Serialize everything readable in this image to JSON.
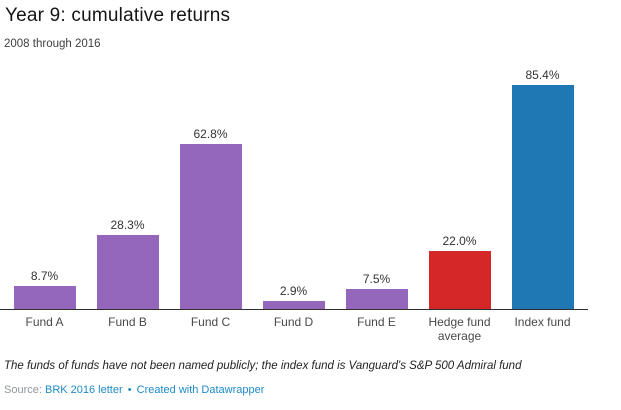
{
  "header": {
    "title": "Year 9: cumulative returns",
    "subtitle": "2008 through 2016"
  },
  "chart_data": {
    "type": "bar",
    "title": "Year 9: cumulative returns",
    "subtitle": "2008 through 2016",
    "categories": [
      "Fund A",
      "Fund B",
      "Fund C",
      "Fund D",
      "Fund E",
      "Hedge fund average",
      "Index fund"
    ],
    "values": [
      8.7,
      28.3,
      62.8,
      2.9,
      7.5,
      22.0,
      85.4
    ],
    "value_labels": [
      "8.7%",
      "28.3%",
      "62.8%",
      "2.9%",
      "7.5%",
      "22.0%",
      "85.4%"
    ],
    "bar_colors": [
      "#9467bd",
      "#9467bd",
      "#9467bd",
      "#9467bd",
      "#9467bd",
      "#d62728",
      "#1f77b4"
    ],
    "xlabel": "",
    "ylabel": "",
    "ylim": [
      0,
      90
    ],
    "grid": false,
    "legend": "none"
  },
  "footer": {
    "note": "The funds of funds have not been named publicly; the index fund is Vanguard's S&P 500 Admiral fund",
    "source_label": "Source:",
    "source_link": "BRK 2016 letter",
    "separator": "•",
    "credit_link": "Created with Datawrapper"
  },
  "colors": {
    "fund_purple": "#9467bd",
    "hedge_red": "#d62728",
    "index_blue": "#1f77b4",
    "link_blue": "#1d8bc9",
    "axis": "#2e2e2e"
  }
}
